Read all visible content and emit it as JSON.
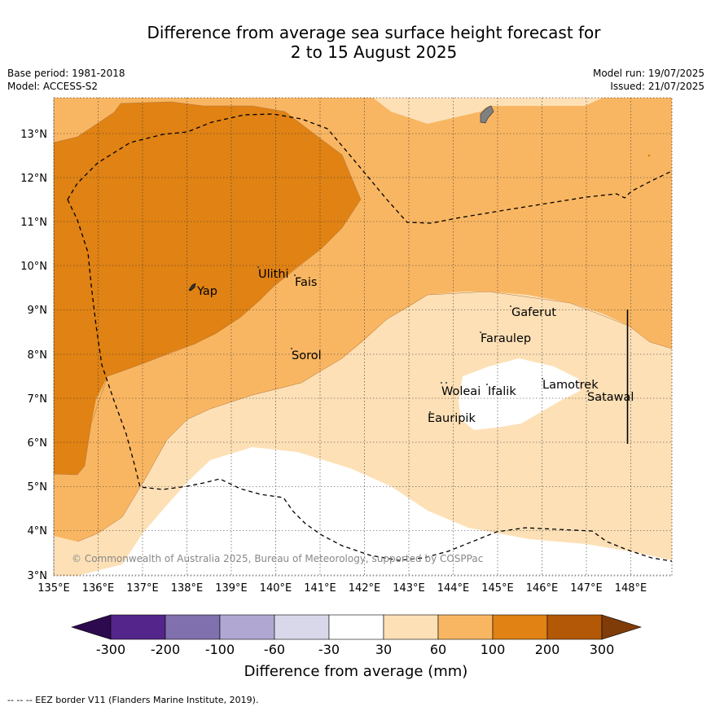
{
  "title": {
    "line1": "Difference from average sea surface height forecast for",
    "line2": "2 to 15 August 2025"
  },
  "meta_left": {
    "base_period": "Base period: 1981-2018",
    "model": "Model: ACCESS-S2"
  },
  "meta_right": {
    "model_run": "Model run: 19/07/2025",
    "issued": "Issued: 21/07/2025"
  },
  "map": {
    "lon_labels": [
      "135°E",
      "136°E",
      "137°E",
      "138°E",
      "139°E",
      "140°E",
      "141°E",
      "142°E",
      "143°E",
      "144°E",
      "145°E",
      "146°E",
      "147°E",
      "148°E"
    ],
    "lat_labels": [
      "13°N",
      "12°N",
      "11°N",
      "10°N",
      "9°N",
      "8°N",
      "7°N",
      "6°N",
      "5°N",
      "4°N",
      "3°N"
    ],
    "places": [
      "Yap",
      "Ulithi",
      "Fais",
      "Gaferut",
      "Faraulep",
      "Sorol",
      "Woleai",
      "Ifalik",
      "Lamotrek",
      "Satawal",
      "Eauripik"
    ],
    "copyright": "© Commonwealth of Australia 2025, Bureau of Meteorology, supported by COSPPac"
  },
  "colorbar": {
    "tick_labels": [
      "-300",
      "-200",
      "-100",
      "-60",
      "-30",
      "30",
      "60",
      "100",
      "200",
      "300"
    ],
    "label": "Difference from average (mm)",
    "colors": {
      "below_min": "#2d0a4e",
      "neg_300_200": "#54258a",
      "neg_200_100": "#8070ad",
      "neg_100_60": "#b0a8d2",
      "neg_60_30": "#d9d8eb",
      "neg30_30": "#ffffff",
      "pos_30_60": "#fde0b6",
      "pos_60_100": "#f9b662",
      "pos_100_200": "#e08214",
      "pos_200_300": "#b35806",
      "above_max": "#7f3b08"
    }
  },
  "footnote": "--  --  -- EEZ border V11 (Flanders Marine Institute, 2019)."
}
